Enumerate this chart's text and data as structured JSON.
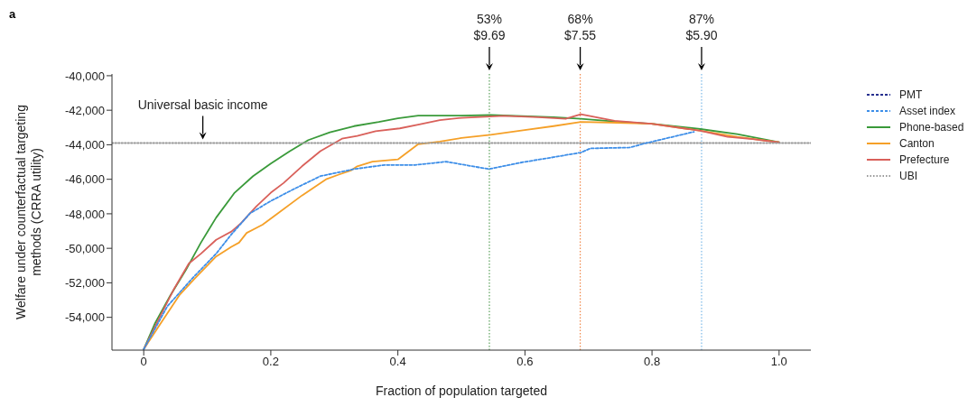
{
  "chart_data": {
    "type": "line",
    "xlabel": "Fraction of population targeted",
    "ylabel": "Welfare under counterfactual targeting methods (CRRA utility)",
    "xlim": [
      -0.05,
      1.05
    ],
    "ylim": [
      -55900,
      -39900
    ],
    "xticks": [
      {
        "value": 0,
        "label": "0"
      },
      {
        "value": 0.2,
        "label": "0.2"
      },
      {
        "value": 0.4,
        "label": "0.4"
      },
      {
        "value": 0.6,
        "label": "0.6"
      },
      {
        "value": 0.8,
        "label": "0.8"
      },
      {
        "value": 1,
        "label": "1.0"
      }
    ],
    "yticks": [
      {
        "value": -54000,
        "label": "-54,000"
      },
      {
        "value": -52000,
        "label": "-52,000"
      },
      {
        "value": -50000,
        "label": "-50,000"
      },
      {
        "value": -48000,
        "label": "-48,000"
      },
      {
        "value": -46000,
        "label": "-46,000"
      },
      {
        "value": -44000,
        "label": "-44,000"
      },
      {
        "value": -42000,
        "label": "-42,000"
      },
      {
        "value": -40000,
        "label": "-40,000"
      }
    ],
    "legend": "top right",
    "marker": "none",
    "series": [
      {
        "name": "PMT",
        "color": "#27308f",
        "line_style": "dashed"
      },
      {
        "name": "Asset index",
        "color": "#3d8ee8",
        "line_style": "dashed",
        "x": [
          0,
          0.037,
          0.076,
          0.114,
          0.138,
          0.167,
          0.2,
          0.235,
          0.278,
          0.331,
          0.379,
          0.427,
          0.476,
          0.543,
          0.597,
          0.645,
          0.688,
          0.703,
          0.765,
          0.789,
          0.866
        ],
        "values": [
          -55850,
          -53370,
          -51760,
          -50310,
          -49190,
          -47980,
          -47260,
          -46590,
          -45820,
          -45410,
          -45170,
          -45170,
          -44980,
          -45410,
          -45010,
          -44720,
          -44450,
          -44210,
          -44160,
          -43920,
          -43250
        ]
      },
      {
        "name": "Phone-based",
        "color": "#3a9a3a",
        "line_style": "solid",
        "x": [
          0,
          0.018,
          0.042,
          0.066,
          0.09,
          0.114,
          0.143,
          0.172,
          0.2,
          0.23,
          0.259,
          0.293,
          0.331,
          0.37,
          0.4,
          0.432,
          0.5,
          0.546,
          0.645,
          0.688,
          0.741,
          0.799,
          0.876,
          0.934,
          1
        ],
        "values": [
          -55850,
          -54330,
          -52720,
          -51280,
          -49670,
          -48220,
          -46780,
          -45820,
          -45090,
          -44370,
          -43730,
          -43280,
          -42920,
          -42680,
          -42470,
          -42310,
          -42310,
          -42280,
          -42400,
          -42500,
          -42650,
          -42780,
          -43090,
          -43380,
          -43860
        ]
      },
      {
        "name": "Canton",
        "color": "#f5a028",
        "line_style": "solid",
        "x": [
          0,
          0.027,
          0.056,
          0.08,
          0.114,
          0.138,
          0.15,
          0.162,
          0.187,
          0.211,
          0.249,
          0.288,
          0.307,
          0.326,
          0.336,
          0.36,
          0.4,
          0.432,
          0.466,
          0.5,
          0.546,
          0.597,
          0.645,
          0.688,
          0.731,
          0.799,
          0.876,
          0.934,
          1
        ],
        "values": [
          -55850,
          -54330,
          -52720,
          -51760,
          -50470,
          -49910,
          -49670,
          -49110,
          -48630,
          -47980,
          -46940,
          -45980,
          -45730,
          -45490,
          -45250,
          -44980,
          -44850,
          -43970,
          -43810,
          -43610,
          -43420,
          -43160,
          -42920,
          -42680,
          -42710,
          -42780,
          -43190,
          -43540,
          -43860
        ]
      },
      {
        "name": "Prefecture",
        "color": "#d9605a",
        "line_style": "solid",
        "x": [
          0,
          0.027,
          0.047,
          0.071,
          0.09,
          0.114,
          0.138,
          0.153,
          0.177,
          0.2,
          0.22,
          0.249,
          0.278,
          0.312,
          0.336,
          0.365,
          0.403,
          0.432,
          0.466,
          0.5,
          0.567,
          0.621,
          0.664,
          0.688,
          0.741,
          0.799,
          0.876,
          0.919,
          0.958,
          1
        ],
        "values": [
          -55850,
          -53850,
          -52400,
          -50880,
          -50310,
          -49510,
          -49030,
          -48550,
          -47580,
          -46780,
          -46220,
          -45250,
          -44370,
          -43650,
          -43490,
          -43210,
          -43050,
          -42840,
          -42570,
          -42440,
          -42330,
          -42400,
          -42500,
          -42230,
          -42610,
          -42780,
          -43190,
          -43540,
          -43670,
          -43860
        ]
      },
      {
        "name": "UBI",
        "color": "#9a9a9a",
        "line_style": "dotted",
        "x": [
          -0.05,
          1.05
        ],
        "values": [
          -43900,
          -43900
        ]
      }
    ],
    "ref_lines": [
      {
        "axis": "x",
        "value": 0.544,
        "color": "#5aa05a",
        "line_style": "dotted"
      },
      {
        "axis": "x",
        "value": 0.687,
        "color": "#f0884a",
        "line_style": "dotted"
      },
      {
        "axis": "x",
        "value": 0.878,
        "color": "#7ab8e8",
        "line_style": "dotted"
      }
    ],
    "annotations": [
      "a",
      {
        "text": "Universal basic income",
        "x": 0.093,
        "y": -43900
      },
      {
        "text": "53%\n$9.69",
        "x": 0.544,
        "y": -39900
      },
      {
        "text": "68%\n$7.55",
        "x": 0.687,
        "y": -39900
      },
      {
        "text": "87%\n$5.90",
        "x": 0.878,
        "y": -39900
      }
    ]
  }
}
